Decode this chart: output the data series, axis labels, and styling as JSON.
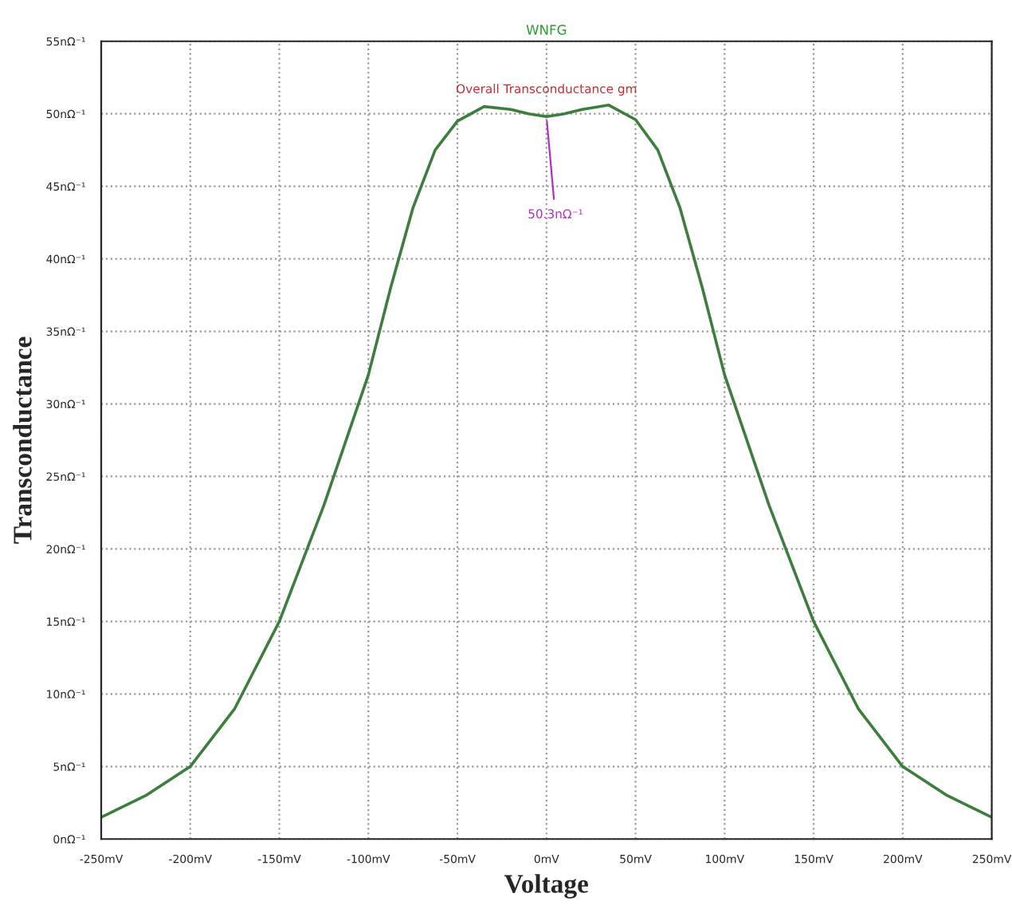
{
  "chart_data": {
    "type": "line",
    "title": "WNFG",
    "xlabel": "Voltage",
    "ylabel": "Transconductance",
    "x": [
      -250,
      -225,
      -200,
      -175,
      -150,
      -125,
      -100,
      -87.5,
      -75,
      -62.5,
      -50,
      -35,
      -20,
      -10,
      0,
      10,
      20,
      35,
      50,
      62.5,
      75,
      87.5,
      100,
      125,
      150,
      175,
      200,
      225,
      250
    ],
    "series": [
      {
        "color": "#3d7d3d",
        "values": [
          1.5,
          3,
          5,
          9,
          15,
          23,
          32,
          38,
          43.5,
          47.5,
          49.5,
          50.5,
          50.3,
          50,
          49.8,
          50,
          50.3,
          50.6,
          49.6,
          47.5,
          43.5,
          38,
          32,
          23,
          15,
          9,
          5,
          3,
          1.5
        ]
      }
    ],
    "xlim": [
      -250,
      250
    ],
    "ylim": [
      0,
      55
    ],
    "xticks": [
      {
        "value": -250,
        "label": "-250mV"
      },
      {
        "value": -200,
        "label": "-200mV"
      },
      {
        "value": -150,
        "label": "-150mV"
      },
      {
        "value": -100,
        "label": "-100mV"
      },
      {
        "value": -50,
        "label": "-50mV"
      },
      {
        "value": 0,
        "label": "0mV"
      },
      {
        "value": 50,
        "label": "50mV"
      },
      {
        "value": 100,
        "label": "100mV"
      },
      {
        "value": 150,
        "label": "150mV"
      },
      {
        "value": 200,
        "label": "200mV"
      },
      {
        "value": 250,
        "label": "250mV"
      }
    ],
    "yticks": [
      {
        "value": 0,
        "label": "0nΩ⁻¹"
      },
      {
        "value": 5,
        "label": "5nΩ⁻¹"
      },
      {
        "value": 10,
        "label": "10nΩ⁻¹"
      },
      {
        "value": 15,
        "label": "15nΩ⁻¹"
      },
      {
        "value": 20,
        "label": "20nΩ⁻¹"
      },
      {
        "value": 25,
        "label": "25nΩ⁻¹"
      },
      {
        "value": 30,
        "label": "30nΩ⁻¹"
      },
      {
        "value": 35,
        "label": "35nΩ⁻¹"
      },
      {
        "value": 40,
        "label": "40nΩ⁻¹"
      },
      {
        "value": 45,
        "label": "45nΩ⁻¹"
      },
      {
        "value": 50,
        "label": "50nΩ⁻¹"
      },
      {
        "value": 55,
        "label": "55nΩ⁻¹"
      }
    ],
    "annotations": [
      "Overall Transconductance gm",
      {
        "text": "50.3nΩ⁻¹",
        "x": 0,
        "y": 49.8
      }
    ],
    "grid": true,
    "line_style": "solid",
    "marker": "none"
  }
}
